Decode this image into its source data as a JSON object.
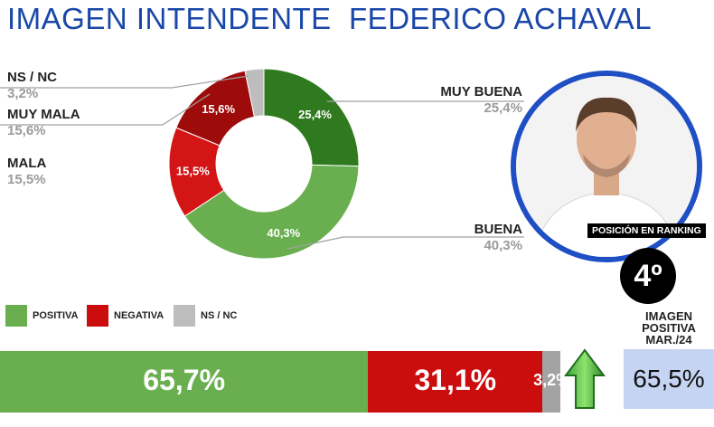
{
  "header": {
    "title": "IMAGEN INTENDENTE  FEDERICO ACHAVAL"
  },
  "chart_data": [
    {
      "type": "pie",
      "title": "",
      "slices": [
        {
          "name": "MUY BUENA",
          "value": 25.4,
          "label": "25,4%",
          "color": "#2f7a1f"
        },
        {
          "name": "BUENA",
          "value": 40.3,
          "label": "40,3%",
          "color": "#6aaf4f"
        },
        {
          "name": "MALA",
          "value": 15.5,
          "label": "15,5%",
          "color": "#d41515"
        },
        {
          "name": "MUY MALA",
          "value": 15.6,
          "label": "15,6%",
          "color": "#9e0b0b"
        },
        {
          "name": "NS / NC",
          "value": 3.2,
          "label": "3,2%",
          "color": "#bdbdbd"
        }
      ]
    },
    {
      "type": "bar",
      "orientation": "horizontal-stacked",
      "series": [
        {
          "name": "POSITIVA",
          "value": 65.7,
          "label": "65,7%",
          "color": "#6aaf4f"
        },
        {
          "name": "NEGATIVA",
          "value": 31.1,
          "label": "31,1%",
          "color": "#cc0d0d"
        },
        {
          "name": "NS / NC",
          "value": 3.2,
          "label": "3,2%",
          "color": "#a3a3a3"
        }
      ]
    }
  ],
  "callouts": {
    "nsnc": {
      "label": "NS / NC",
      "value": "3,2%"
    },
    "muy_mala": {
      "label": "MUY MALA",
      "value": "15,6%"
    },
    "mala": {
      "label": "MALA",
      "value": "15,5%"
    },
    "muy_buena": {
      "label": "MUY BUENA",
      "value": "25,4%"
    },
    "buena": {
      "label": "BUENA",
      "value": "40,3%"
    }
  },
  "legend": [
    {
      "label": "POSITIVA",
      "color": "#6aaf4f"
    },
    {
      "label": "NEGATIVA",
      "color": "#cc0d0d"
    },
    {
      "label": "NS / NC",
      "color": "#bdbdbd"
    }
  ],
  "profile": {
    "ranking_label": "POSICIÓN EN RANKING",
    "ranking_value": "4º"
  },
  "previous": {
    "label": "IMAGEN POSITIVA MAR./24",
    "value": "65,5%"
  }
}
